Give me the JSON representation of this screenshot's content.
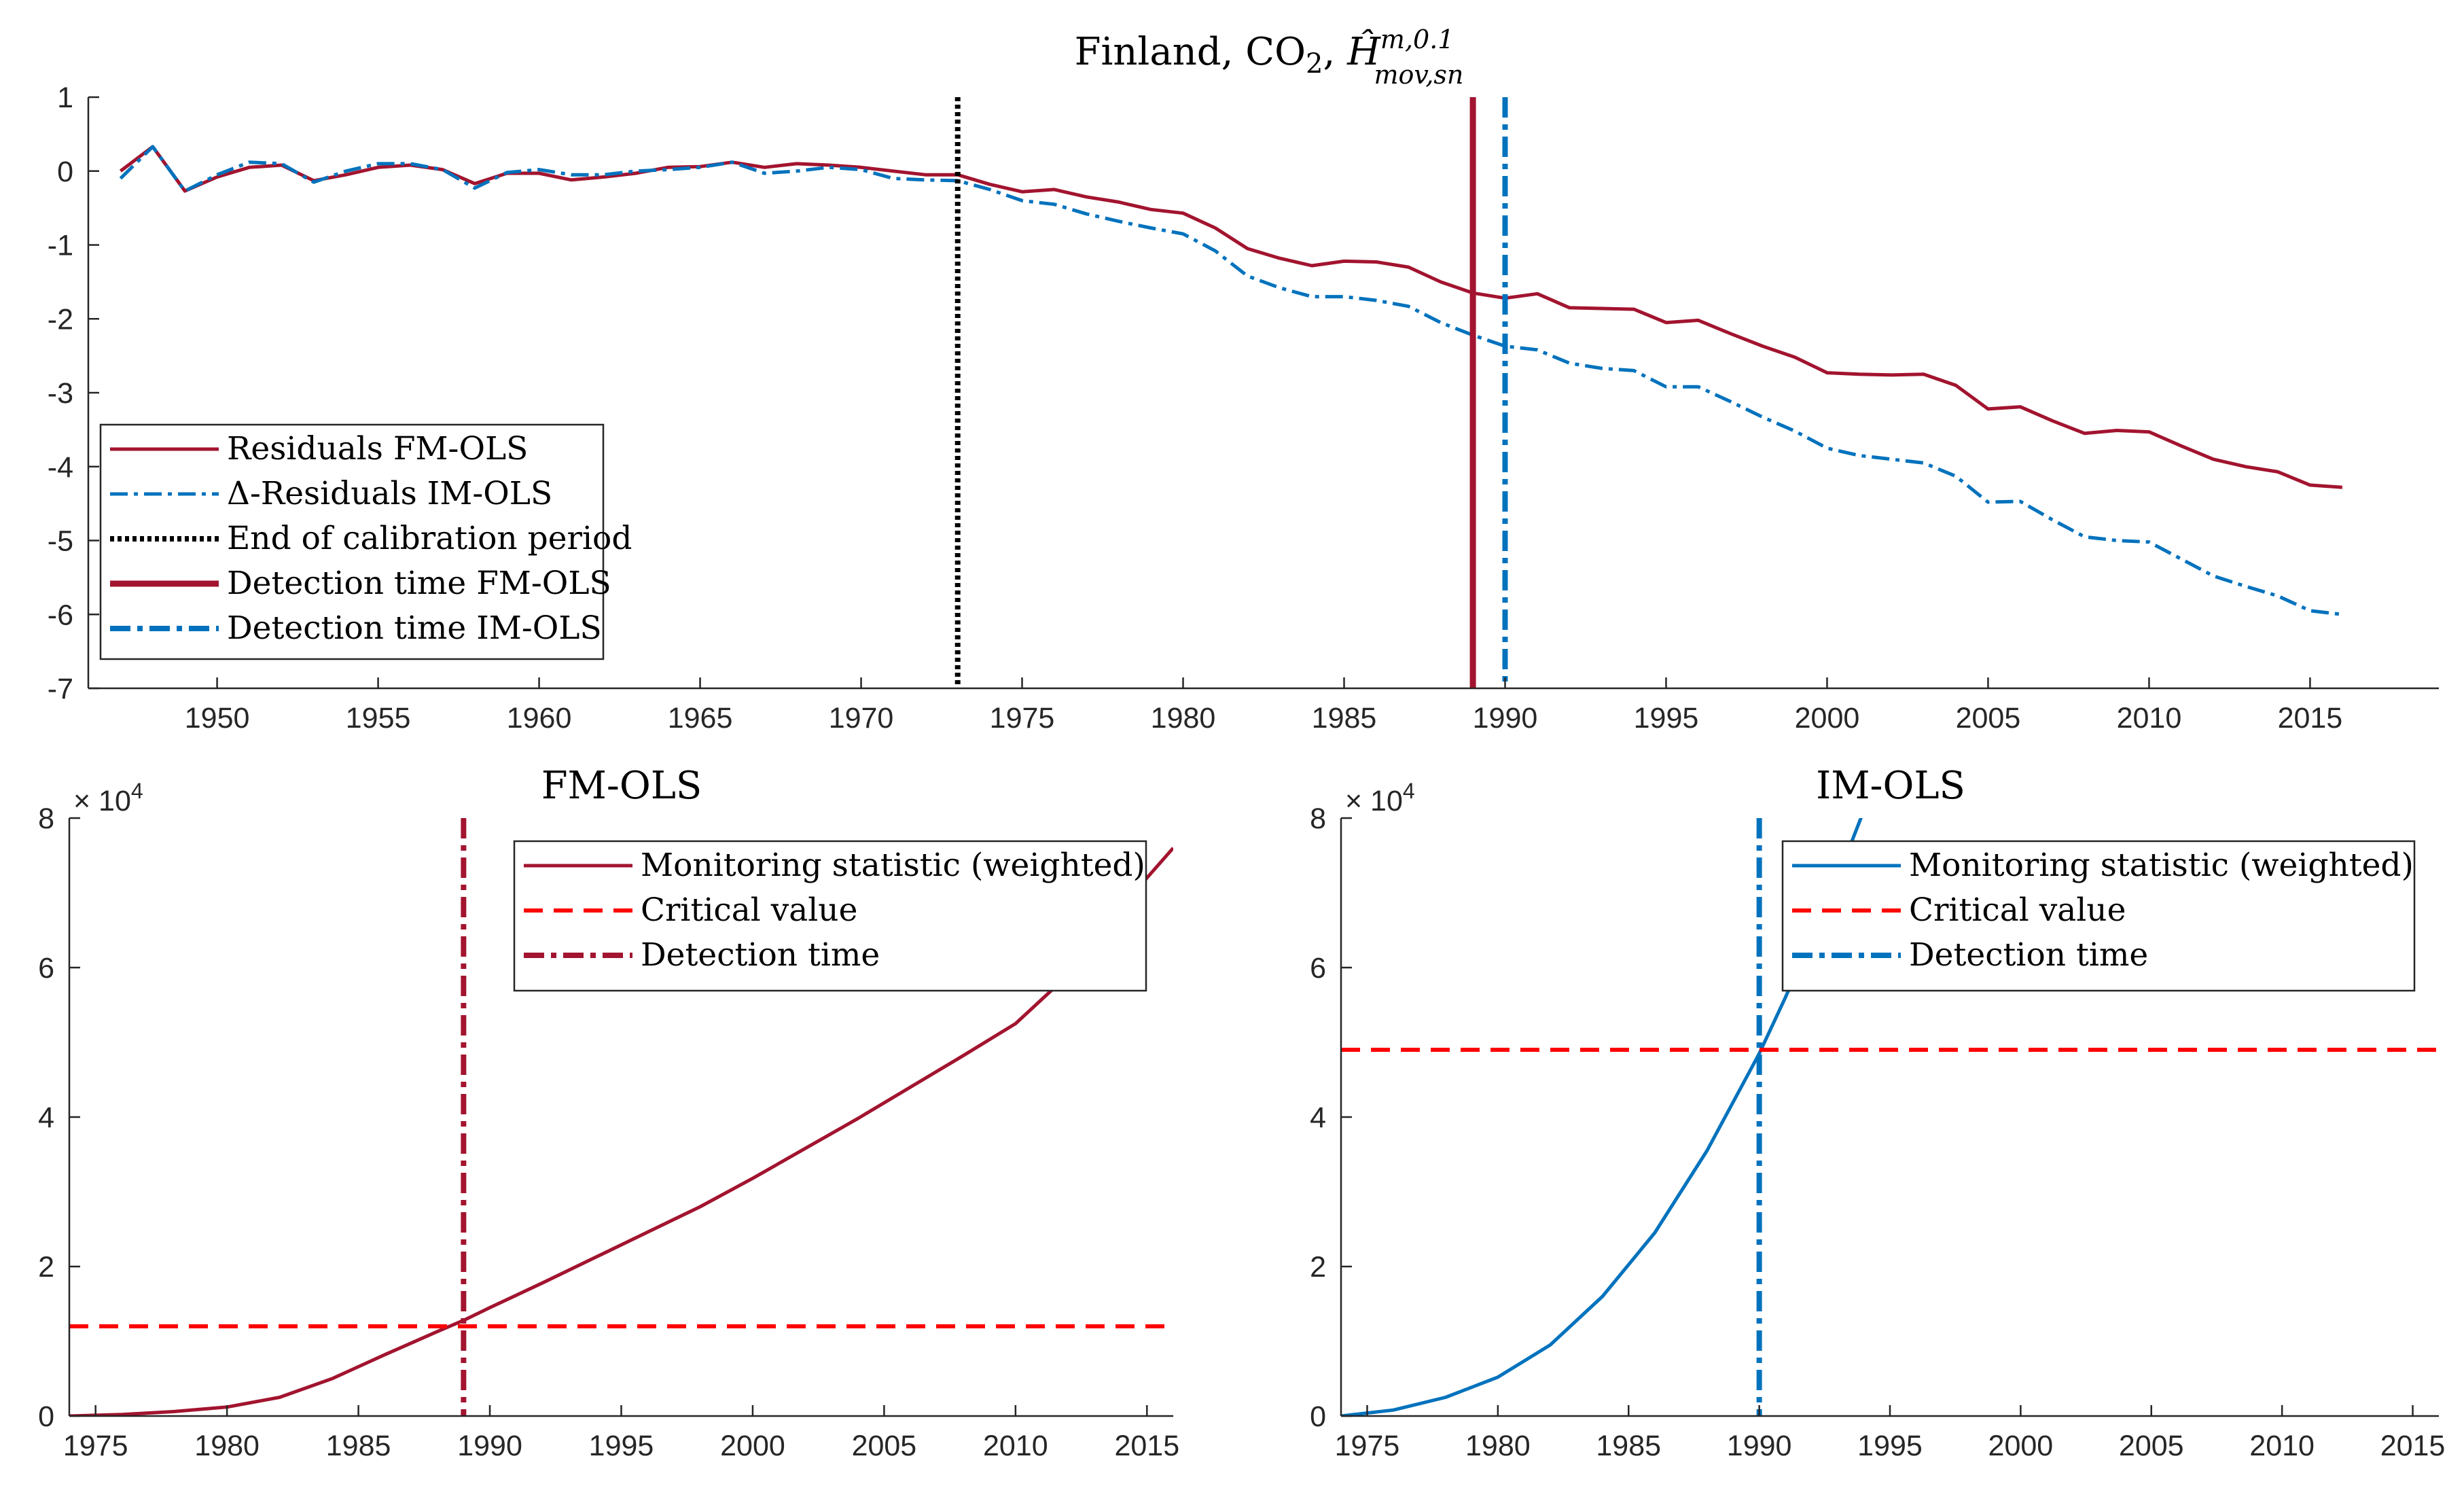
{
  "chart_data": [
    {
      "type": "line",
      "title": "Finland, CO",
      "title_sub": "2",
      "title_sep": ", ",
      "title_math": {
        "base": "Ĥ",
        "sup": "m,0.1",
        "sub": "mov,sn"
      },
      "xlim": [
        1946,
        2019
      ],
      "ylim": [
        -7,
        1
      ],
      "xticks": [
        1950,
        1955,
        1960,
        1965,
        1970,
        1975,
        1980,
        1985,
        1990,
        1995,
        2000,
        2005,
        2010,
        2015
      ],
      "yticks": [
        -7,
        -6,
        -5,
        -4,
        -3,
        -2,
        -1,
        0,
        1
      ],
      "legend_position": "lower-left",
      "series": [
        {
          "name": "Residuals FM-OLS",
          "color": "#a2142f",
          "style": "solid",
          "x": [
            1947,
            1948,
            1949,
            1950,
            1951,
            1952,
            1953,
            1954,
            1955,
            1956,
            1957,
            1958,
            1959,
            1960,
            1961,
            1962,
            1963,
            1964,
            1965,
            1966,
            1967,
            1968,
            1969,
            1970,
            1971,
            1972,
            1973,
            1974,
            1975,
            1976,
            1977,
            1978,
            1979,
            1980,
            1981,
            1982,
            1983,
            1984,
            1985,
            1986,
            1987,
            1988,
            1989,
            1990,
            1991,
            1992,
            1993,
            1994,
            1995,
            1996,
            1997,
            1998,
            1999,
            2000,
            2001,
            2002,
            2003,
            2004,
            2005,
            2006,
            2007,
            2008,
            2009,
            2010,
            2011,
            2012,
            2013,
            2014,
            2015,
            2016
          ],
          "y": [
            0,
            0.33,
            -0.27,
            -0.08,
            0.05,
            0.08,
            -0.13,
            -0.05,
            0.05,
            0.08,
            0.02,
            -0.17,
            -0.03,
            -0.03,
            -0.12,
            -0.08,
            -0.03,
            0.05,
            0.06,
            0.12,
            0.05,
            0.1,
            0.08,
            0.05,
            0,
            -0.05,
            -0.05,
            -0.18,
            -0.28,
            -0.25,
            -0.35,
            -0.42,
            -0.52,
            -0.57,
            -0.77,
            -1.05,
            -1.18,
            -1.28,
            -1.22,
            -1.23,
            -1.3,
            -1.5,
            -1.65,
            -1.72,
            -1.66,
            -1.85,
            -1.86,
            -1.87,
            -2.05,
            -2.02,
            -2.2,
            -2.37,
            -2.52,
            -2.73,
            -2.75,
            -2.76,
            -2.75,
            -2.9,
            -3.22,
            -3.19,
            -3.38,
            -3.55,
            -3.51,
            -3.53,
            -3.72,
            -3.9,
            -4.0,
            -4.07,
            -4.25,
            -4.28
          ]
        },
        {
          "name": "Δ-Residuals IM-OLS",
          "color": "#0072bd",
          "style": "dash-dot",
          "x": [
            1947,
            1948,
            1949,
            1950,
            1951,
            1952,
            1953,
            1954,
            1955,
            1956,
            1957,
            1958,
            1959,
            1960,
            1961,
            1962,
            1963,
            1964,
            1965,
            1966,
            1967,
            1968,
            1969,
            1970,
            1971,
            1972,
            1973,
            1974,
            1975,
            1976,
            1977,
            1978,
            1979,
            1980,
            1981,
            1982,
            1983,
            1984,
            1985,
            1986,
            1987,
            1988,
            1989,
            1990,
            1991,
            1992,
            1993,
            1994,
            1995,
            1996,
            1997,
            1998,
            1999,
            2000,
            2001,
            2002,
            2003,
            2004,
            2005,
            2006,
            2007,
            2008,
            2009,
            2010,
            2011,
            2012,
            2013,
            2014,
            2015,
            2016
          ],
          "y": [
            -0.1,
            0.33,
            -0.27,
            -0.05,
            0.12,
            0.1,
            -0.15,
            0,
            0.1,
            0.1,
            0.02,
            -0.23,
            -0.02,
            0.02,
            -0.05,
            -0.05,
            0,
            0.02,
            0.05,
            0.12,
            -0.03,
            0,
            0.05,
            0.02,
            -0.1,
            -0.12,
            -0.13,
            -0.25,
            -0.4,
            -0.45,
            -0.58,
            -0.68,
            -0.77,
            -0.85,
            -1.08,
            -1.42,
            -1.58,
            -1.7,
            -1.7,
            -1.75,
            -1.83,
            -2.05,
            -2.22,
            -2.37,
            -2.42,
            -2.6,
            -2.67,
            -2.7,
            -2.92,
            -2.92,
            -3.12,
            -3.33,
            -3.52,
            -3.75,
            -3.85,
            -3.9,
            -3.95,
            -4.13,
            -4.48,
            -4.47,
            -4.72,
            -4.95,
            -5.0,
            -5.02,
            -5.25,
            -5.48,
            -5.62,
            -5.75,
            -5.95,
            -6.0
          ]
        },
        {
          "name": "End of calibration period",
          "color": "#000000",
          "style": "dotted",
          "x_vertical": 1973
        },
        {
          "name": "Detection time FM-OLS",
          "color": "#a2142f",
          "style": "solid-thick",
          "x_vertical": 1989
        },
        {
          "name": "Detection time IM-OLS",
          "color": "#0072bd",
          "style": "dash-dot-thick",
          "x_vertical": 1990
        }
      ]
    },
    {
      "type": "line",
      "title": "FM-OLS",
      "xlim": [
        1974,
        2016
      ],
      "ylim": [
        0,
        8
      ],
      "y_exponent_base": "× 10",
      "y_exponent_power": "4",
      "xticks": [
        1975,
        1980,
        1985,
        1990,
        1995,
        2000,
        2005,
        2010,
        2015
      ],
      "yticks": [
        0,
        2,
        4,
        6,
        8
      ],
      "legend_position": "top-right",
      "series": [
        {
          "name": "Monitoring statistic (weighted)",
          "color": "#a2142f",
          "style": "solid",
          "x": [
            1974,
            1976,
            1978,
            1980,
            1982,
            1984,
            1986,
            1988,
            1989,
            1990,
            1992,
            1994,
            1996,
            1998,
            2000,
            2002,
            2004,
            2006,
            2008,
            2010,
            2012,
            2014,
            2016
          ],
          "y": [
            0,
            0.02,
            0.06,
            0.12,
            0.25,
            0.5,
            0.82,
            1.13,
            1.28,
            1.45,
            1.78,
            2.12,
            2.46,
            2.8,
            3.18,
            3.58,
            3.98,
            4.4,
            4.82,
            5.25,
            5.9,
            6.8,
            7.6
          ]
        },
        {
          "name": "Critical value",
          "color": "#ff0000",
          "style": "dashed",
          "y_horizontal": 1.2
        },
        {
          "name": "Detection time",
          "color": "#a2142f",
          "style": "dash-dot-thick",
          "x_vertical": 1989
        }
      ]
    },
    {
      "type": "line",
      "title": "IM-OLS",
      "xlim": [
        1974,
        2016
      ],
      "ylim": [
        0,
        8
      ],
      "y_exponent_base": "× 10",
      "y_exponent_power": "4",
      "xticks": [
        1975,
        1980,
        1985,
        1990,
        1995,
        2000,
        2005,
        2010,
        2015
      ],
      "yticks": [
        0,
        2,
        4,
        6,
        8
      ],
      "legend_position": "top-right",
      "series": [
        {
          "name": "Monitoring statistic (weighted)",
          "color": "#0072bd",
          "style": "solid",
          "x": [
            1974,
            1976,
            1978,
            1980,
            1982,
            1984,
            1986,
            1988,
            1990,
            1991,
            1992,
            1993,
            1994
          ],
          "y": [
            0,
            0.08,
            0.25,
            0.52,
            0.95,
            1.6,
            2.45,
            3.55,
            4.85,
            5.6,
            6.4,
            7.2,
            8.1
          ]
        },
        {
          "name": "Critical value",
          "color": "#ff0000",
          "style": "dashed",
          "y_horizontal": 4.9
        },
        {
          "name": "Detection time",
          "color": "#0072bd",
          "style": "dash-dot-thick",
          "x_vertical": 1990
        }
      ]
    }
  ]
}
